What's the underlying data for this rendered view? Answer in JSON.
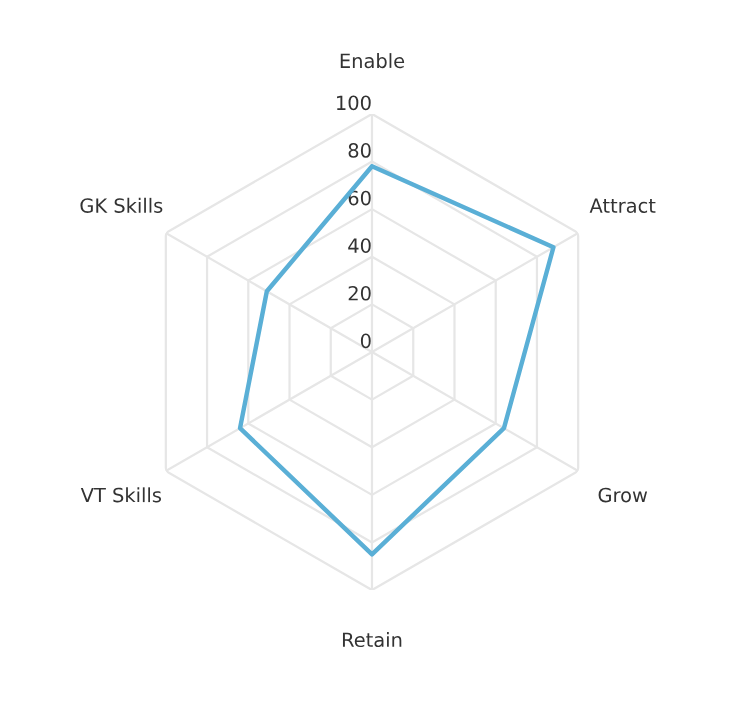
{
  "chart_data": {
    "type": "radar",
    "categories": [
      "Enable",
      "Attract",
      "Grow",
      "Retain",
      "VT Skills",
      "GK Skills"
    ],
    "series": [
      {
        "color": "#5aafd6",
        "values": [
          78,
          88,
          64,
          85,
          64,
          51
        ]
      }
    ],
    "ylim": [
      0,
      100
    ],
    "yticks": [
      0,
      20,
      40,
      60,
      80,
      100
    ],
    "grid": true
  }
}
